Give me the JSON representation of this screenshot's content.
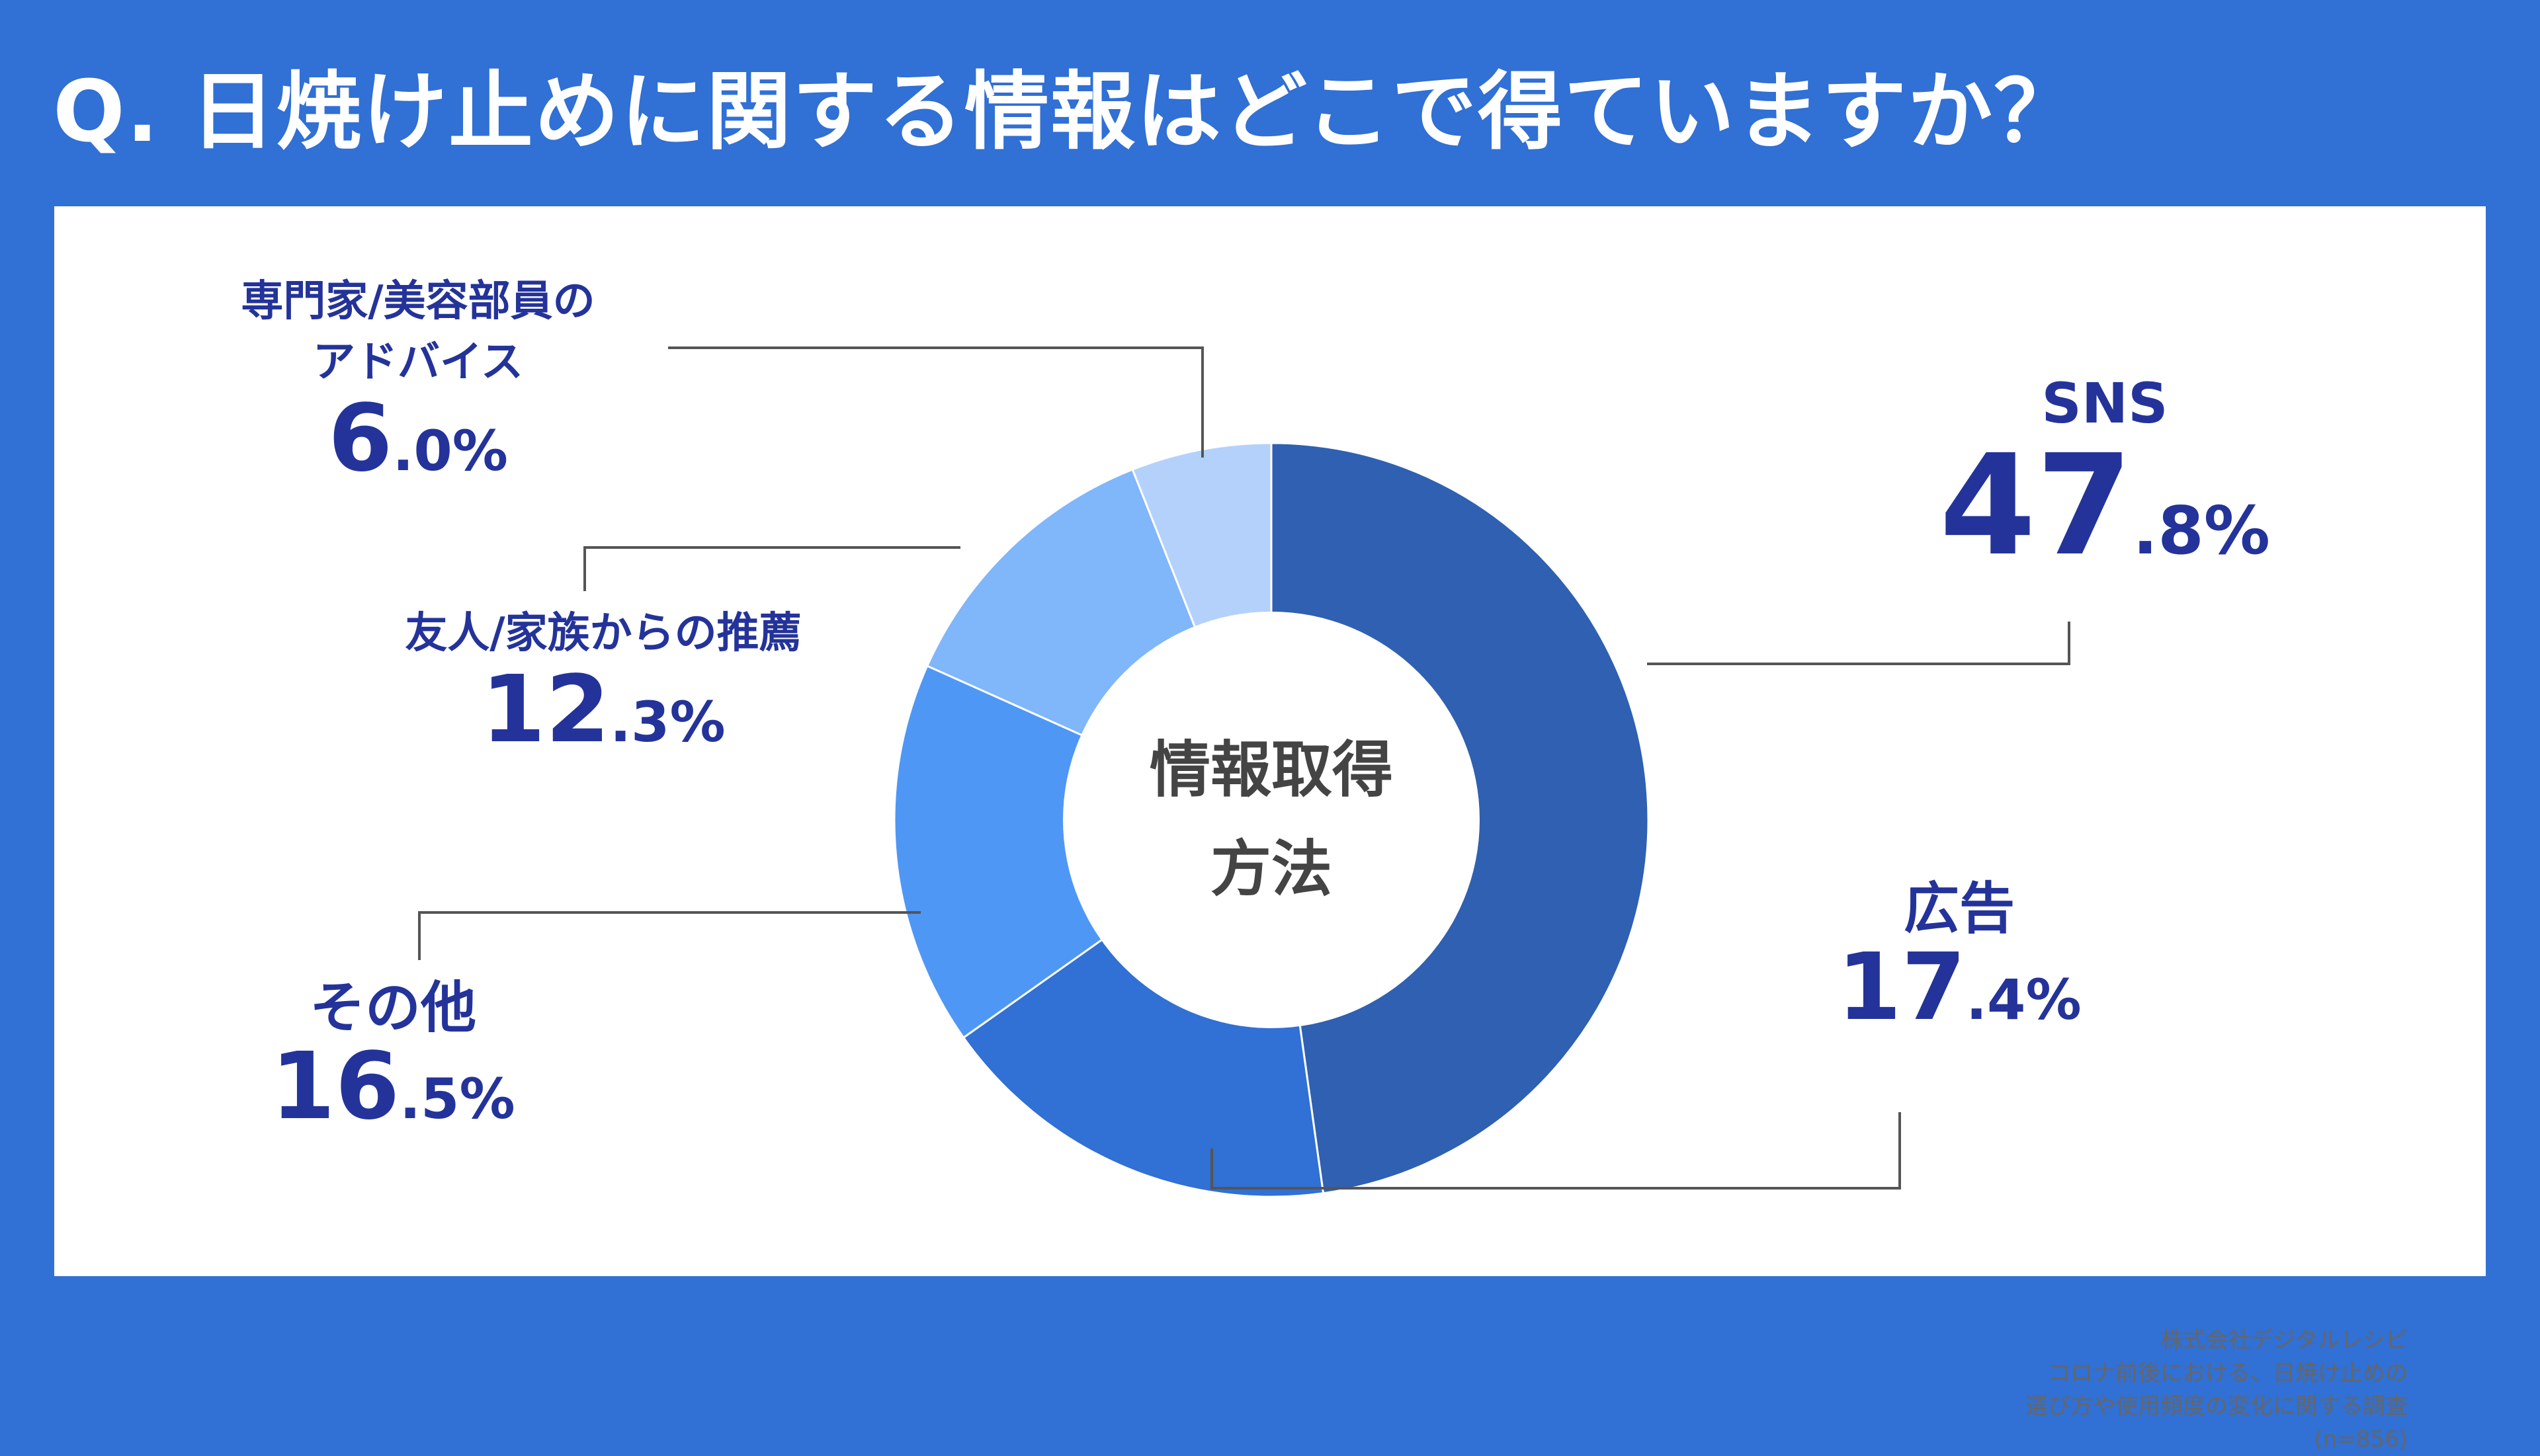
{
  "title": "Q. 日焼け止めに関する情報はどこで得ていますか？",
  "center_label": [
    "情報取得",
    "方法"
  ],
  "source": [
    "株式会社デジタルレシピ",
    "コロナ前後における、日焼け止めの",
    "選び方や使用頻度の変化に関する調査",
    "(n=856)"
  ],
  "colors": {
    "background": "#3170d4",
    "label_text": "#24339a",
    "leader_line": "#555555"
  },
  "chart_data": {
    "type": "pie",
    "title": "",
    "center_text": "情報取得方法",
    "unit": "%",
    "categories": [
      "SNS",
      "広告",
      "その他",
      "友人/家族からの推薦",
      "専門家/美容部員のアドバイス"
    ],
    "values": [
      47.8,
      17.4,
      16.5,
      12.3,
      6.0
    ],
    "colors": [
      "#2f60b1",
      "#3170d4",
      "#4f97f5",
      "#80b6fa",
      "#b3d1fb"
    ],
    "labels": [
      {
        "lines": [
          "SNS"
        ],
        "int": "47",
        "dec": ".8%"
      },
      {
        "lines": [
          "広告"
        ],
        "int": "17",
        "dec": ".4%"
      },
      {
        "lines": [
          "その他"
        ],
        "int": "16",
        "dec": ".5%"
      },
      {
        "lines": [
          "友人/家族からの推薦"
        ],
        "int": "12",
        "dec": ".3%"
      },
      {
        "lines": [
          "専門家/美容部員の",
          "アドバイス"
        ],
        "int": "6",
        "dec": ".0%"
      }
    ]
  }
}
